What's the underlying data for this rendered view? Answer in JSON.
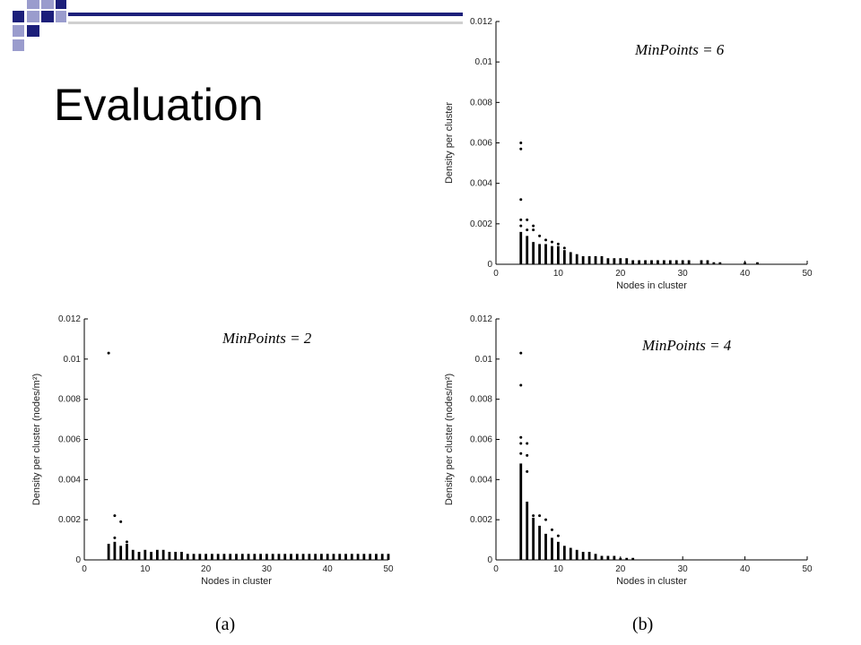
{
  "slide": {
    "title": "Evaluation",
    "captions": [
      "(a)",
      "(b)"
    ],
    "deco_colors": {
      "navy": "#1c1f7a",
      "lavender": "#9a9ccd",
      "gray": "#d0d0d0"
    }
  },
  "chart_data": [
    {
      "id": "minpoints-6",
      "type": "scatter",
      "annotation": "MinPoints = 6",
      "xlabel": "Nodes in cluster",
      "ylabel": "Density per cluster",
      "xlim": [
        0,
        50
      ],
      "ylim": [
        0,
        0.012
      ],
      "xticks": [
        0,
        10,
        20,
        30,
        40,
        50
      ],
      "yticks": [
        0,
        0.002,
        0.004,
        0.006,
        0.008,
        0.01,
        0.012
      ],
      "ytick_labels": [
        "0",
        "0.002",
        "0.004",
        "0.006",
        "0.008",
        "0.01",
        "0.012"
      ],
      "grid": false,
      "stacks": [
        [
          4,
          0,
          0.0016
        ],
        [
          5,
          0,
          0.0014
        ],
        [
          6,
          0,
          0.0011
        ],
        [
          7,
          0,
          0.001
        ],
        [
          8,
          0,
          0.001
        ],
        [
          9,
          0,
          0.0009
        ],
        [
          10,
          0,
          0.0009
        ],
        [
          11,
          0,
          0.0007
        ],
        [
          12,
          0,
          0.0006
        ],
        [
          13,
          0,
          0.0005
        ],
        [
          14,
          0,
          0.0004
        ],
        [
          15,
          0,
          0.0004
        ],
        [
          16,
          0,
          0.0004
        ],
        [
          17,
          0,
          0.0004
        ],
        [
          18,
          0,
          0.0003
        ],
        [
          19,
          0,
          0.0003
        ],
        [
          20,
          0,
          0.0003
        ],
        [
          21,
          0,
          0.0003
        ],
        [
          22,
          0,
          0.0002
        ],
        [
          23,
          0,
          0.0002
        ],
        [
          24,
          0,
          0.0002
        ],
        [
          25,
          0,
          0.0002
        ],
        [
          26,
          0,
          0.0002
        ],
        [
          27,
          0,
          0.0002
        ],
        [
          28,
          0,
          0.0002
        ],
        [
          29,
          0,
          0.0002
        ],
        [
          30,
          0,
          0.0002
        ],
        [
          31,
          0,
          0.0002
        ],
        [
          33,
          0,
          0.0002
        ],
        [
          34,
          0,
          0.0002
        ],
        [
          35,
          0,
          0.0001
        ],
        [
          36,
          0,
          0.0001
        ],
        [
          40,
          0,
          0.0001
        ],
        [
          42,
          0,
          0.0001
        ]
      ],
      "points": [
        [
          4,
          0.006
        ],
        [
          4,
          0.0057
        ],
        [
          4,
          0.0032
        ],
        [
          4,
          0.0022
        ],
        [
          4,
          0.0019
        ],
        [
          5,
          0.0022
        ],
        [
          5,
          0.0017
        ],
        [
          6,
          0.0019
        ],
        [
          6,
          0.0017
        ],
        [
          7,
          0.0014
        ],
        [
          8,
          0.0012
        ],
        [
          9,
          0.0011
        ],
        [
          10,
          0.001
        ],
        [
          11,
          0.0008
        ]
      ]
    },
    {
      "id": "minpoints-2",
      "type": "scatter",
      "annotation": "MinPoints = 2",
      "xlabel": "Nodes in cluster",
      "ylabel": "Density per cluster (nodes/m²)",
      "xlim": [
        0,
        50
      ],
      "ylim": [
        0,
        0.012
      ],
      "xticks": [
        0,
        10,
        20,
        30,
        40,
        50
      ],
      "yticks": [
        0,
        0.002,
        0.004,
        0.006,
        0.008,
        0.01,
        0.012
      ],
      "ytick_labels": [
        "0",
        "0.002",
        "0.004",
        "0.006",
        "0.008",
        "0.01",
        "0.012"
      ],
      "grid": false,
      "stacks": [
        [
          4,
          0,
          0.0008
        ],
        [
          5,
          0,
          0.0009
        ],
        [
          6,
          0,
          0.0007
        ],
        [
          7,
          0,
          0.0008
        ],
        [
          8,
          0,
          0.0005
        ],
        [
          9,
          0,
          0.0004
        ],
        [
          10,
          0,
          0.0005
        ],
        [
          11,
          0,
          0.0004
        ],
        [
          12,
          0,
          0.0005
        ],
        [
          13,
          0,
          0.0005
        ],
        [
          14,
          0,
          0.0004
        ],
        [
          15,
          0,
          0.0004
        ],
        [
          16,
          0,
          0.0004
        ],
        [
          17,
          0,
          0.0003
        ],
        [
          18,
          0,
          0.0003
        ],
        [
          19,
          0,
          0.0003
        ],
        [
          20,
          0,
          0.0003
        ],
        [
          21,
          0,
          0.0003
        ],
        [
          22,
          0,
          0.0003
        ],
        [
          23,
          0,
          0.0003
        ],
        [
          24,
          0,
          0.0003
        ],
        [
          25,
          0,
          0.0003
        ],
        [
          26,
          0,
          0.0003
        ],
        [
          27,
          0,
          0.0003
        ],
        [
          28,
          0,
          0.0003
        ],
        [
          29,
          0,
          0.0003
        ],
        [
          30,
          0,
          0.0003
        ],
        [
          31,
          0,
          0.0003
        ],
        [
          32,
          0,
          0.0003
        ],
        [
          33,
          0,
          0.0003
        ],
        [
          34,
          0,
          0.0003
        ],
        [
          35,
          0,
          0.0003
        ],
        [
          36,
          0,
          0.0003
        ],
        [
          37,
          0,
          0.0003
        ],
        [
          38,
          0,
          0.0003
        ],
        [
          39,
          0,
          0.0003
        ],
        [
          40,
          0,
          0.0003
        ],
        [
          41,
          0,
          0.0003
        ],
        [
          42,
          0,
          0.0003
        ],
        [
          43,
          0,
          0.0003
        ],
        [
          44,
          0,
          0.0003
        ],
        [
          45,
          0,
          0.0003
        ],
        [
          46,
          0,
          0.0003
        ],
        [
          47,
          0,
          0.0003
        ],
        [
          48,
          0,
          0.0003
        ],
        [
          49,
          0,
          0.0003
        ],
        [
          50,
          0,
          0.0003
        ]
      ],
      "points": [
        [
          4,
          0.0103
        ],
        [
          5,
          0.0022
        ],
        [
          6,
          0.0019
        ],
        [
          5,
          0.0011
        ],
        [
          7,
          0.0009
        ]
      ]
    },
    {
      "id": "minpoints-4",
      "type": "scatter",
      "annotation": "MinPoints = 4",
      "xlabel": "Nodes in cluster",
      "ylabel": "Density per cluster (nodes/m²)",
      "xlim": [
        0,
        50
      ],
      "ylim": [
        0,
        0.012
      ],
      "xticks": [
        0,
        10,
        20,
        30,
        40,
        50
      ],
      "yticks": [
        0,
        0.002,
        0.004,
        0.006,
        0.008,
        0.01,
        0.012
      ],
      "ytick_labels": [
        "0",
        "0.002",
        "0.004",
        "0.006",
        "0.008",
        "0.01",
        "0.012"
      ],
      "grid": false,
      "stacks": [
        [
          4,
          0,
          0.0048
        ],
        [
          5,
          0,
          0.0029
        ],
        [
          6,
          0,
          0.0021
        ],
        [
          7,
          0,
          0.0017
        ],
        [
          8,
          0,
          0.0013
        ],
        [
          9,
          0,
          0.0011
        ],
        [
          10,
          0,
          0.0009
        ],
        [
          11,
          0,
          0.0007
        ],
        [
          12,
          0,
          0.0006
        ],
        [
          13,
          0,
          0.0005
        ],
        [
          14,
          0,
          0.0004
        ],
        [
          15,
          0,
          0.0004
        ],
        [
          16,
          0,
          0.0003
        ],
        [
          17,
          0,
          0.0002
        ],
        [
          18,
          0,
          0.0002
        ],
        [
          19,
          0,
          0.0002
        ],
        [
          20,
          0,
          0.0001
        ],
        [
          21,
          0,
          0.0001
        ],
        [
          22,
          0,
          0.0001
        ]
      ],
      "points": [
        [
          4,
          0.0103
        ],
        [
          4,
          0.0087
        ],
        [
          4,
          0.0061
        ],
        [
          4,
          0.0058
        ],
        [
          5,
          0.0058
        ],
        [
          5,
          0.0052
        ],
        [
          5,
          0.0044
        ],
        [
          4,
          0.0053
        ],
        [
          6,
          0.0022
        ],
        [
          7,
          0.0022
        ],
        [
          8,
          0.002
        ],
        [
          9,
          0.0015
        ],
        [
          10,
          0.0012
        ]
      ]
    }
  ]
}
